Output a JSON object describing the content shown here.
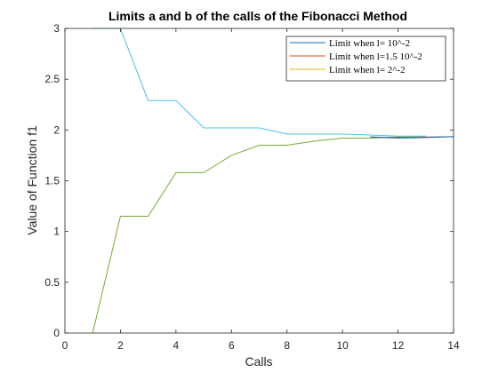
{
  "chart_data": {
    "type": "line",
    "title": "Limits a and b of the calls of the Fibonacci Method",
    "xlabel": "Calls",
    "ylabel": "Value of Function f1",
    "xlim": [
      0,
      14
    ],
    "ylim": [
      0,
      3
    ],
    "xticks": [
      "0",
      "2",
      "4",
      "6",
      "8",
      "10",
      "12",
      "14"
    ],
    "yticks": [
      "0",
      "0.5",
      "1",
      "1.5",
      "2",
      "2.5",
      "3"
    ],
    "grid": false,
    "legend_position": "top-right",
    "legend": [
      {
        "label": "Limit when l= 10^-2",
        "color": "#0072BD"
      },
      {
        "label": "Limit when l=1.5 10^-2",
        "color": "#D95319"
      },
      {
        "label": "Limit when l= 2^-2",
        "color": "#EDB120"
      }
    ],
    "series": [
      {
        "color": "#4DBEEE",
        "x": [
          1,
          2,
          3,
          4,
          5,
          6,
          7,
          8,
          9,
          10,
          11,
          12,
          13
        ],
        "y": [
          3.0,
          3.0,
          2.29,
          2.29,
          2.02,
          2.02,
          2.02,
          1.96,
          1.96,
          1.96,
          1.95,
          1.94,
          1.94
        ]
      },
      {
        "color": "#77AC30",
        "x": [
          1,
          2,
          3,
          4,
          5,
          6,
          7,
          8,
          9,
          10,
          11,
          12,
          13
        ],
        "y": [
          0,
          1.15,
          1.15,
          1.58,
          1.58,
          1.75,
          1.85,
          1.85,
          1.89,
          1.92,
          1.92,
          1.93,
          1.93
        ]
      },
      {
        "color": "#D95319",
        "x": [
          11,
          12,
          13,
          14
        ],
        "y": [
          1.93,
          1.925,
          1.93,
          1.935
        ]
      },
      {
        "color": "#0072BD",
        "x": [
          11,
          12,
          13,
          14
        ],
        "y": [
          1.93,
          1.92,
          1.925,
          1.935
        ]
      }
    ]
  }
}
